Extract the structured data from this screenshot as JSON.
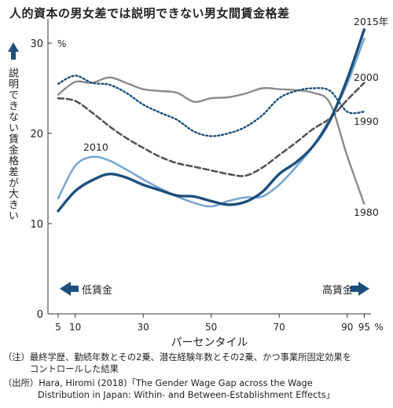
{
  "title": "人的資本の男女差では説明できない男女間賃金格差",
  "notes": {
    "note_label": "（注）",
    "note_line1": "最終学歴、勤続年数とその2乗、潜在経験年数とその2乗、かつ事業所固定効果を",
    "note_line2": "コントロールした結果",
    "source_label": "（出所）",
    "source_line1": "Hara, Hiromi (2018)「The Gender Wage Gap across the Wage",
    "source_line2": "Distribution in Japan: Within- and Between-Establishment Effects」"
  },
  "colors": {
    "s2015": "#1d4f7c",
    "s2010": "#7aa7cf",
    "s2000": "#555555",
    "s1990": "#1d4f7c",
    "s1980": "#8a8a8a",
    "axis": "#333333"
  },
  "chart_data": {
    "type": "line",
    "xlabel": "パーセンタイル",
    "ylabel": "説明できない賃金格差が大きい",
    "y_unit": "%",
    "x_unit": "%",
    "xlim": [
      2,
      97
    ],
    "ylim": [
      0,
      32
    ],
    "x_ticks": [
      5,
      10,
      30,
      50,
      70,
      90,
      95
    ],
    "y_ticks": [
      0,
      10,
      20,
      30
    ],
    "arrow_left_label": "低賃金",
    "arrow_right_label": "高賃金",
    "x": [
      5,
      10,
      15,
      20,
      25,
      30,
      35,
      40,
      45,
      50,
      55,
      60,
      65,
      70,
      75,
      80,
      85,
      90,
      95
    ],
    "series": [
      {
        "name": "2015年",
        "style": "solid-thick",
        "values": [
          11.4,
          13.6,
          14.8,
          15.5,
          15.1,
          14.3,
          13.7,
          13.1,
          13.0,
          12.5,
          12.1,
          12.4,
          13.5,
          15.5,
          16.8,
          18.6,
          21.5,
          26.0,
          31.5
        ]
      },
      {
        "name": "2010",
        "style": "solid",
        "values": [
          12.8,
          16.4,
          17.4,
          17.0,
          16.0,
          14.9,
          13.9,
          13.0,
          12.3,
          11.9,
          12.5,
          12.9,
          13.0,
          14.3,
          16.3,
          18.6,
          21.7,
          25.5,
          30.5
        ]
      },
      {
        "name": "2000",
        "style": "dashed",
        "values": [
          23.9,
          23.6,
          22.3,
          20.8,
          19.5,
          18.4,
          17.4,
          16.7,
          16.3,
          15.9,
          15.5,
          15.3,
          16.2,
          17.6,
          19.0,
          20.5,
          21.7,
          23.7,
          25.6
        ]
      },
      {
        "name": "1990",
        "style": "dotted",
        "values": [
          25.5,
          26.4,
          25.6,
          25.4,
          24.5,
          23.2,
          22.3,
          21.5,
          20.2,
          19.7,
          20.0,
          20.7,
          22.0,
          23.9,
          24.7,
          25.0,
          24.7,
          22.4,
          22.4
        ]
      },
      {
        "name": "1980",
        "style": "solid-gray",
        "values": [
          24.3,
          25.7,
          25.6,
          26.2,
          25.6,
          24.9,
          24.7,
          24.5,
          23.5,
          23.9,
          24.0,
          24.4,
          25.0,
          24.9,
          24.8,
          24.5,
          23.3,
          17.5,
          12.2
        ]
      }
    ]
  }
}
